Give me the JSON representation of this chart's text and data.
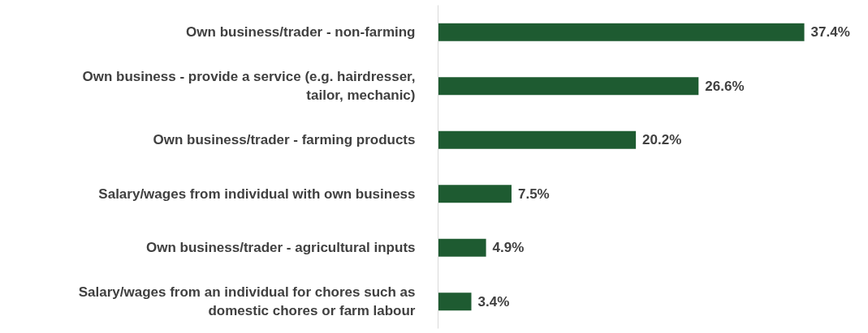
{
  "chart_data": {
    "type": "bar",
    "orientation": "horizontal",
    "categories": [
      "Own business/trader - non-farming",
      "Own business - provide a service (e.g. hairdresser, tailor, mechanic)",
      "Own business/trader - farming products",
      "Salary/wages from individual with own business",
      "Own business/trader - agricultural inputs",
      "Salary/wages from an individual for chores such as domestic chores or farm labour"
    ],
    "values": [
      37.4,
      26.6,
      20.2,
      7.5,
      4.9,
      3.4
    ],
    "value_labels": [
      "37.4%",
      "26.6%",
      "20.2%",
      "7.5%",
      "4.9%",
      "3.4%"
    ],
    "color": "#1e5b31",
    "grid": false
  }
}
